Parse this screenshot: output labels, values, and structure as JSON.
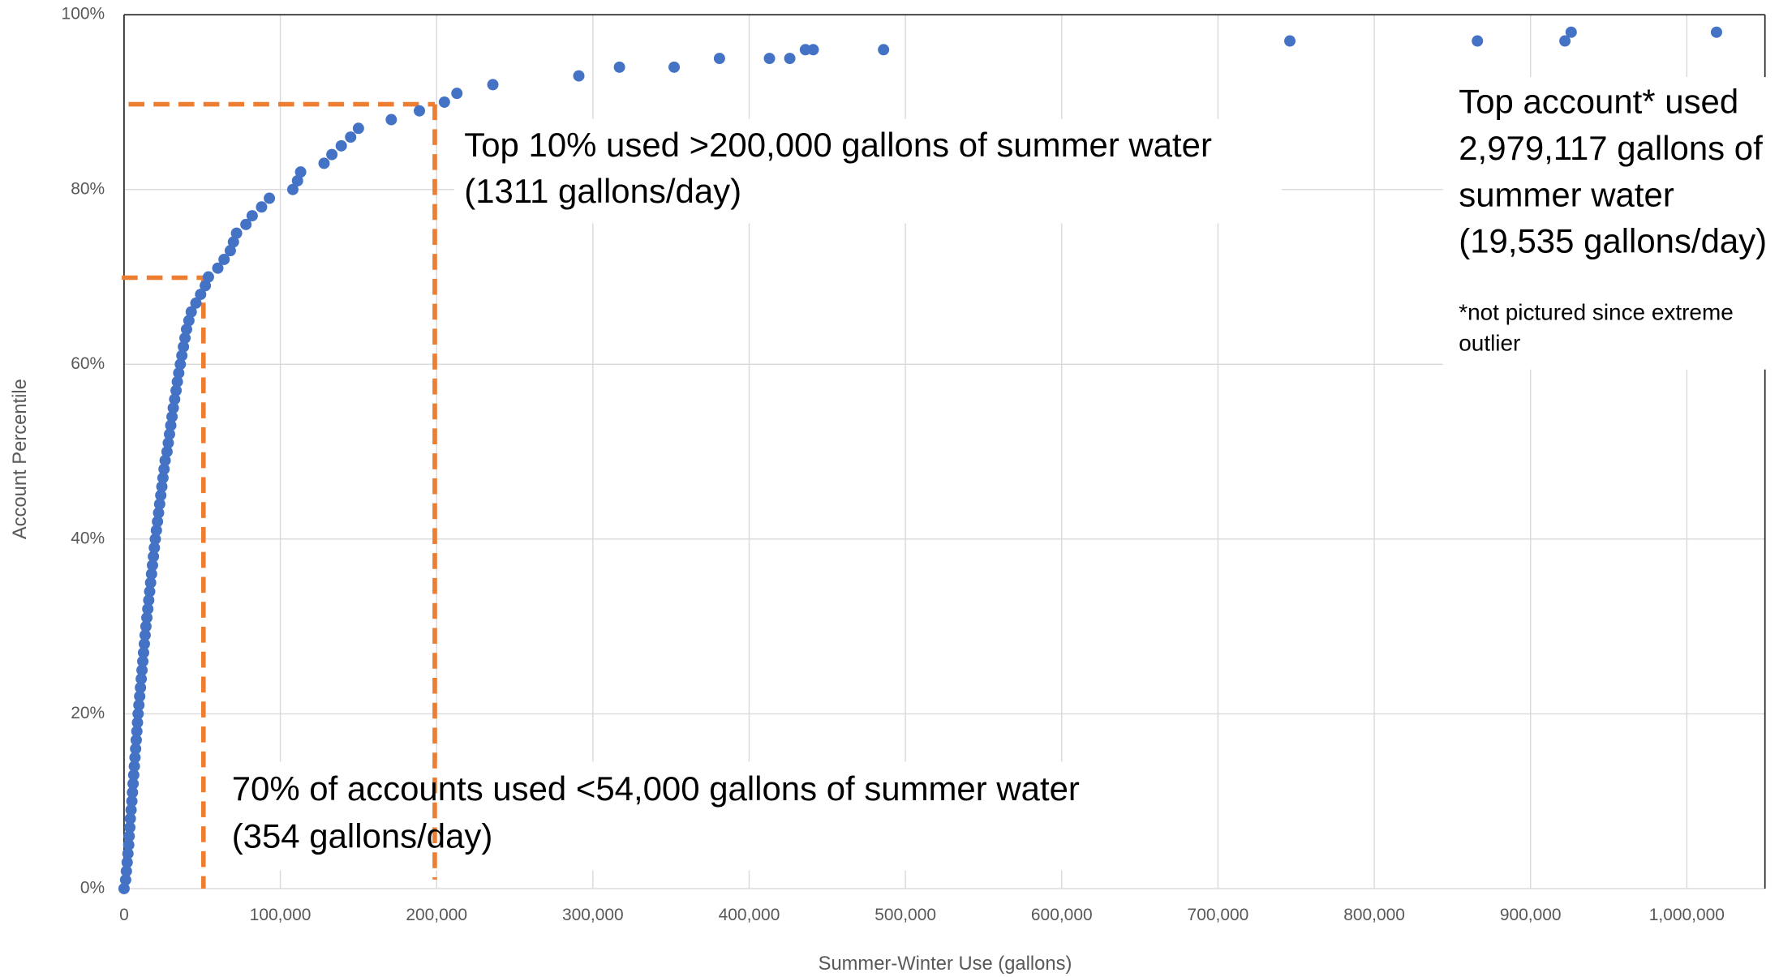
{
  "chart_data": {
    "type": "scatter",
    "x_label": "Summer-Winter Use (gallons)",
    "y_label": "Account Percentile",
    "xlim": [
      0,
      1050000
    ],
    "ylim": [
      0,
      100
    ],
    "xticks": [
      0,
      {
        "value": 100000,
        "label": "100,000"
      },
      {
        "value": 200000,
        "label": "200,000"
      },
      {
        "value": 300000,
        "label": "300,000"
      },
      {
        "value": 400000,
        "label": "400,000"
      },
      {
        "value": 500000,
        "label": "500,000"
      },
      {
        "value": 600000,
        "label": "600,000"
      },
      {
        "value": 700000,
        "label": "700,000"
      },
      {
        "value": 800000,
        "label": "800,000"
      },
      {
        "value": 900000,
        "label": "900,000"
      },
      {
        "value": 1000000,
        "label": "1,000,000"
      }
    ],
    "yticks": [
      {
        "value": 0,
        "label": "0%"
      },
      {
        "value": 20,
        "label": "20%"
      },
      {
        "value": 40,
        "label": "40%"
      },
      {
        "value": 60,
        "label": "60%"
      },
      {
        "value": 80,
        "label": "80%"
      },
      {
        "value": 100,
        "label": "100%"
      }
    ],
    "grid": true,
    "series": [
      {
        "color": "#4472c4",
        "x": [
          0,
          1000,
          1500,
          2000,
          2500,
          3000,
          3300,
          3700,
          4000,
          4500,
          5000,
          5400,
          5800,
          6200,
          6600,
          7000,
          7400,
          7800,
          8200,
          8600,
          9000,
          9500,
          10000,
          10500,
          11000,
          11500,
          12000,
          12500,
          13000,
          13500,
          14000,
          14600,
          15200,
          15800,
          16400,
          17000,
          17600,
          18200,
          18800,
          19400,
          20000,
          20700,
          21400,
          22100,
          22800,
          23500,
          24200,
          24900,
          25600,
          26300,
          27500,
          28300,
          29100,
          29900,
          30700,
          31500,
          32400,
          33300,
          34100,
          35000,
          36000,
          37000,
          38000,
          39000,
          40000,
          41500,
          43000,
          46000,
          49000,
          52000,
          54000,
          60000,
          64000,
          68000,
          70000,
          72000,
          78000,
          82000,
          88000,
          93000,
          108000,
          111000,
          113000,
          128000,
          133000,
          139000,
          145000,
          150000,
          171000,
          189000,
          205000,
          213000,
          236000,
          291000,
          317000,
          352000,
          381000,
          413000,
          426000,
          436000,
          441000,
          486000,
          746000,
          866000,
          922000,
          926000,
          1019000
        ],
        "values": [
          0,
          1,
          2,
          3,
          4,
          5,
          6,
          7,
          8,
          9,
          10,
          11,
          12,
          13,
          14,
          15,
          16,
          17,
          18,
          19,
          20,
          21,
          22,
          23,
          24,
          25,
          26,
          27,
          28,
          29,
          30,
          31,
          32,
          33,
          34,
          35,
          36,
          37,
          38,
          39,
          40,
          41,
          42,
          43,
          44,
          45,
          46,
          47,
          48,
          49,
          50,
          51,
          52,
          53,
          54,
          55,
          56,
          57,
          58,
          59,
          60,
          61,
          62,
          63,
          64,
          65,
          66,
          67,
          68,
          69,
          70,
          71,
          72,
          73,
          74,
          75,
          76,
          77,
          78,
          79,
          80,
          81,
          82,
          83,
          84,
          85,
          86,
          87,
          88,
          89,
          90,
          91,
          92,
          93,
          94,
          94,
          95,
          95,
          95,
          96,
          96,
          96,
          97,
          97,
          97,
          98,
          98
        ]
      }
    ],
    "annotations": [
      {
        "lines": [
          "Top 10% used >200,000 gallons of summer water",
          "(1311 gallons/day)"
        ]
      },
      {
        "lines": [
          "70% of accounts used <54,000 gallons of summer water",
          "(354 gallons/day)"
        ]
      },
      {
        "lines": [
          "Top account* used",
          "2,979,117 gallons of",
          "summer water",
          "(19,535 gallons/day)"
        ],
        "note": [
          "*not pictured since extreme",
          "outlier"
        ]
      }
    ]
  }
}
